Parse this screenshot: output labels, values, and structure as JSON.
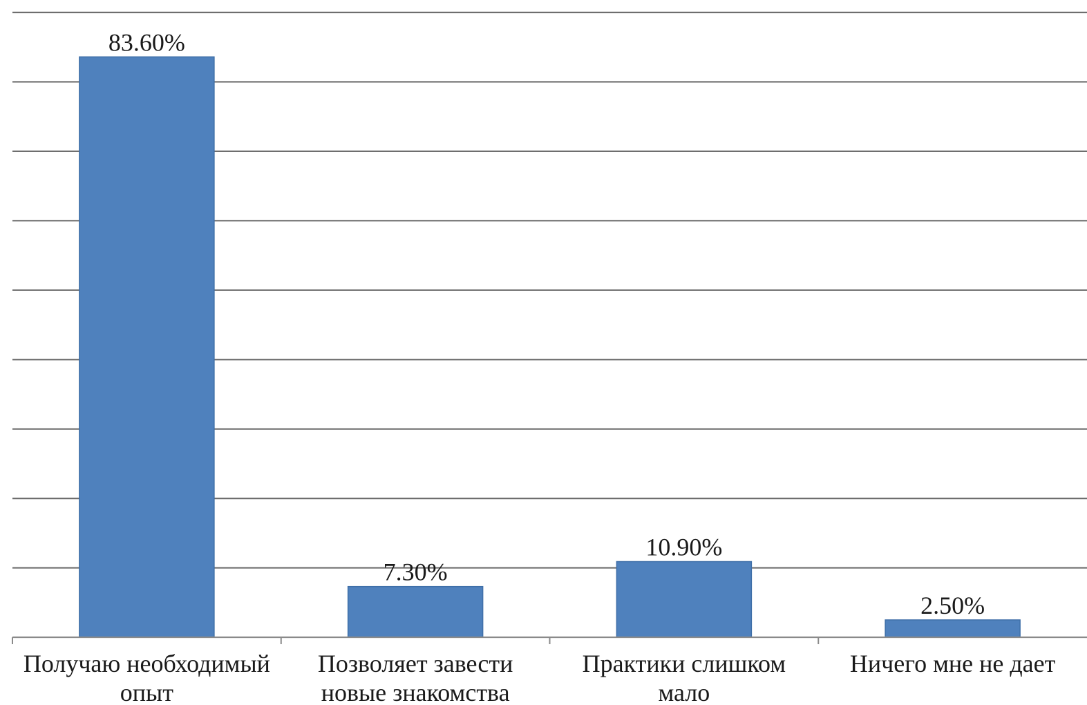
{
  "chart_data": {
    "type": "bar",
    "categories": [
      [
        "Получаю необходимый",
        "опыт"
      ],
      [
        "Позволяет завести",
        "новые знакомства"
      ],
      [
        "Практики слишком",
        "мало"
      ],
      [
        "Ничего мне не дает"
      ]
    ],
    "values": [
      83.6,
      7.3,
      10.9,
      2.5
    ],
    "data_labels": [
      "83.60%",
      "7.30%",
      "10.90%",
      "2.50%"
    ],
    "ylim": [
      0,
      90
    ],
    "y_grid_step": 10,
    "grid": true,
    "legend": false,
    "bar_color": "#4f81bd"
  }
}
